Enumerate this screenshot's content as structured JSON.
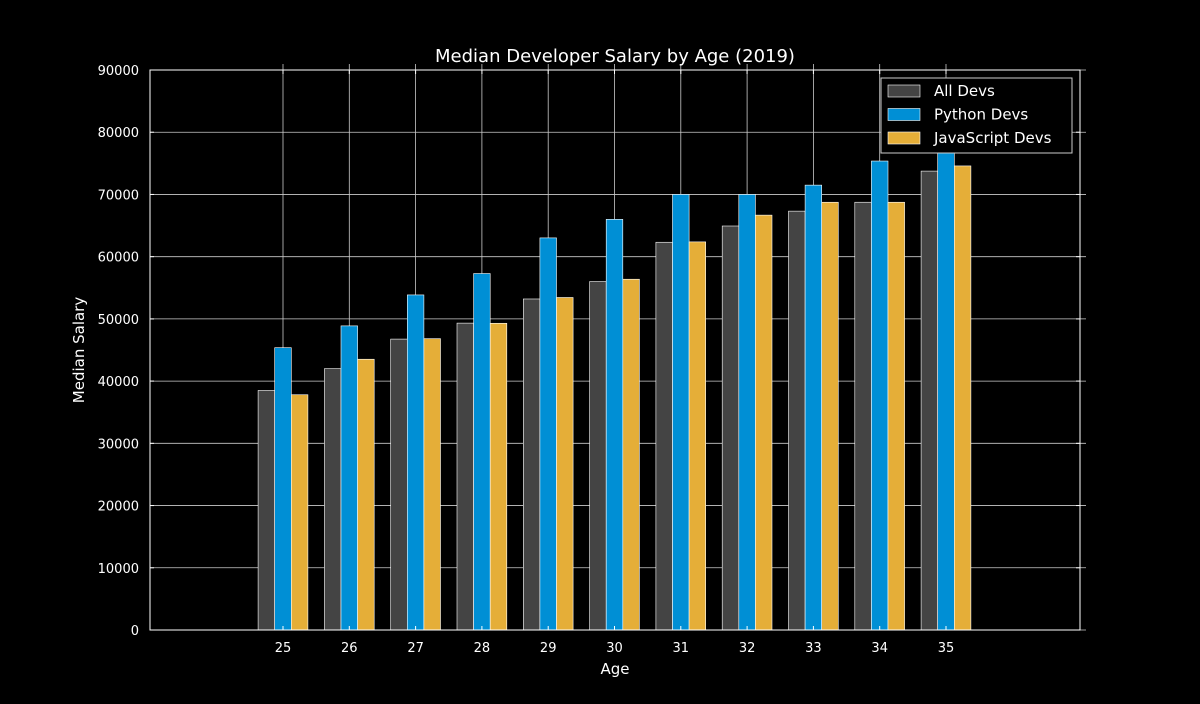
{
  "chart_data": {
    "type": "bar",
    "title": "Median Developer Salary by Age (2019)",
    "xlabel": "Age",
    "ylabel": "Median Salary",
    "categories": [
      "25",
      "26",
      "27",
      "28",
      "29",
      "30",
      "31",
      "32",
      "33",
      "34",
      "35"
    ],
    "ylim": [
      0,
      90000
    ],
    "yticks": [
      "0",
      "10000",
      "20000",
      "30000",
      "40000",
      "50000",
      "60000",
      "70000",
      "80000",
      "90000"
    ],
    "grid": true,
    "legend_position": "top-right",
    "series": [
      {
        "name": "All Devs",
        "color": "#444444",
        "values": [
          38496,
          42000,
          46752,
          49320,
          53200,
          56000,
          62316,
          64928,
          67317,
          68748,
          73752
        ]
      },
      {
        "name": "Python Devs",
        "color": "#008fd5",
        "values": [
          45372,
          48876,
          53850,
          57287,
          63016,
          65998,
          70003,
          70000,
          71496,
          75370,
          83640
        ]
      },
      {
        "name": "JavaScript Devs",
        "color": "#e5ae38",
        "values": [
          37810,
          43515,
          46823,
          49293,
          53437,
          56373,
          62375,
          66674,
          68745,
          68746,
          74583
        ]
      }
    ]
  }
}
